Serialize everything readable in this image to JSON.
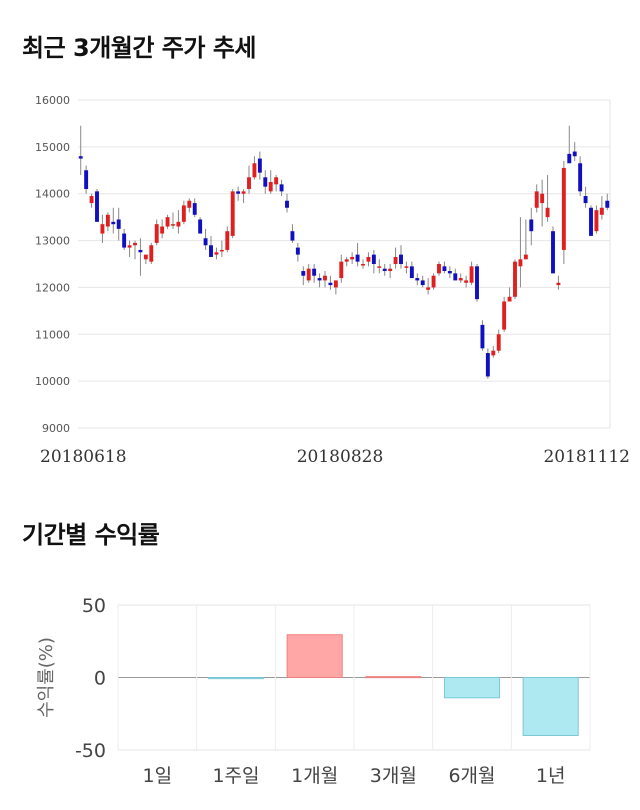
{
  "sections": {
    "price_title": "최근 3개월간 주가 추세",
    "returns_title": "기간별 수익률"
  },
  "chart_data": [
    {
      "type": "candlestick",
      "title": "최근 3개월간 주가 추세",
      "ylim": [
        9000,
        16000
      ],
      "yticks": [
        9000,
        10000,
        11000,
        12000,
        13000,
        14000,
        15000,
        16000
      ],
      "xtick_labels": [
        "20180618",
        "20180828",
        "20181112"
      ],
      "grid": true,
      "up_color": "#e02020",
      "down_color": "#1010c0",
      "series": [
        [
          14800,
          15450,
          14400,
          14750
        ],
        [
          14500,
          14600,
          14000,
          14100
        ],
        [
          13800,
          14000,
          13700,
          13950
        ],
        [
          14050,
          14100,
          13400,
          13400
        ],
        [
          13150,
          13550,
          12950,
          13350
        ],
        [
          13300,
          13600,
          13200,
          13550
        ],
        [
          13400,
          13700,
          13150,
          13350
        ],
        [
          13450,
          13700,
          13000,
          13250
        ],
        [
          13150,
          13250,
          12800,
          12850
        ],
        [
          12850,
          13000,
          12650,
          12900
        ],
        [
          12900,
          13000,
          12600,
          12950
        ],
        [
          12800,
          13050,
          12250,
          12750
        ],
        [
          12600,
          12700,
          12500,
          12700
        ],
        [
          12550,
          12950,
          12500,
          12900
        ],
        [
          12950,
          13450,
          12900,
          13350
        ],
        [
          13150,
          13450,
          13050,
          13300
        ],
        [
          13300,
          13550,
          13250,
          13500
        ],
        [
          13350,
          13600,
          13250,
          13350
        ],
        [
          13300,
          13650,
          13150,
          13400
        ],
        [
          13400,
          13850,
          13350,
          13750
        ],
        [
          13700,
          13900,
          13600,
          13850
        ],
        [
          13800,
          13900,
          13500,
          13550
        ],
        [
          13450,
          13500,
          13150,
          13150
        ],
        [
          13050,
          13250,
          12800,
          12900
        ],
        [
          12900,
          13100,
          12650,
          12650
        ],
        [
          12700,
          12850,
          12600,
          12750
        ],
        [
          12800,
          13000,
          12650,
          12800
        ],
        [
          12800,
          13300,
          12750,
          13200
        ],
        [
          13100,
          14100,
          13050,
          14050
        ],
        [
          14050,
          14150,
          13850,
          14000
        ],
        [
          14000,
          14100,
          13800,
          14050
        ],
        [
          14100,
          14600,
          14000,
          14350
        ],
        [
          14350,
          14800,
          14300,
          14650
        ],
        [
          14750,
          14900,
          14300,
          14450
        ],
        [
          14350,
          14500,
          14000,
          14150
        ],
        [
          14050,
          14500,
          14000,
          14250
        ],
        [
          14200,
          14400,
          14050,
          14350
        ],
        [
          14200,
          14300,
          13950,
          14050
        ],
        [
          13850,
          14000,
          13600,
          13700
        ],
        [
          13200,
          13350,
          12950,
          13000
        ],
        [
          12850,
          12950,
          12550,
          12700
        ],
        [
          12350,
          12450,
          12050,
          12250
        ],
        [
          12150,
          12500,
          12100,
          12400
        ],
        [
          12400,
          12500,
          12100,
          12250
        ],
        [
          12200,
          12300,
          12000,
          12150
        ],
        [
          12150,
          12350,
          12000,
          12250
        ],
        [
          12100,
          12250,
          11950,
          12050
        ],
        [
          12000,
          12150,
          11850,
          12150
        ],
        [
          12200,
          12700,
          12100,
          12550
        ],
        [
          12550,
          12650,
          12450,
          12600
        ],
        [
          12600,
          12750,
          12500,
          12650
        ],
        [
          12700,
          12950,
          12450,
          12550
        ],
        [
          12500,
          12600,
          12400,
          12500
        ],
        [
          12550,
          12750,
          12450,
          12650
        ],
        [
          12700,
          12800,
          12300,
          12500
        ],
        [
          12450,
          12600,
          12300,
          12450
        ],
        [
          12400,
          12500,
          12250,
          12350
        ],
        [
          12350,
          12500,
          12200,
          12400
        ],
        [
          12500,
          12850,
          12400,
          12650
        ],
        [
          12700,
          12900,
          12400,
          12500
        ],
        [
          12450,
          12550,
          12300,
          12450
        ],
        [
          12450,
          12550,
          12200,
          12200
        ],
        [
          12200,
          12300,
          12050,
          12150
        ],
        [
          12150,
          12250,
          12000,
          12050
        ],
        [
          11950,
          12200,
          11850,
          12000
        ],
        [
          12000,
          12300,
          11950,
          12250
        ],
        [
          12300,
          12550,
          12250,
          12500
        ],
        [
          12450,
          12550,
          12300,
          12350
        ],
        [
          12350,
          12450,
          12200,
          12300
        ],
        [
          12300,
          12400,
          12150,
          12150
        ],
        [
          12150,
          12300,
          12100,
          12200
        ],
        [
          12100,
          12250,
          12000,
          12150
        ],
        [
          12100,
          12550,
          12050,
          12450
        ],
        [
          12450,
          12500,
          11700,
          11750
        ],
        [
          11200,
          11300,
          10650,
          10700
        ],
        [
          10600,
          10700,
          10050,
          10100
        ],
        [
          10550,
          10750,
          10500,
          10650
        ],
        [
          10650,
          11100,
          10600,
          11000
        ],
        [
          11100,
          11800,
          11050,
          11700
        ],
        [
          11700,
          12000,
          11700,
          11800
        ],
        [
          11800,
          12600,
          11750,
          12550
        ],
        [
          12450,
          13500,
          12000,
          12600
        ],
        [
          12600,
          13450,
          12600,
          12700
        ],
        [
          13450,
          13700,
          12900,
          13200
        ],
        [
          13700,
          14200,
          13600,
          14050
        ],
        [
          13800,
          14300,
          13300,
          14000
        ],
        [
          13500,
          14400,
          13400,
          13700
        ],
        [
          13200,
          13300,
          12300,
          12300
        ],
        [
          12050,
          12250,
          11950,
          12100
        ],
        [
          12800,
          14700,
          12500,
          14550
        ],
        [
          14850,
          15450,
          14700,
          14650
        ],
        [
          14900,
          15100,
          14700,
          14800
        ],
        [
          14650,
          14800,
          13950,
          14050
        ],
        [
          13950,
          14150,
          13700,
          13800
        ],
        [
          13700,
          13750,
          13100,
          13100
        ],
        [
          13200,
          13750,
          13150,
          13650
        ],
        [
          13550,
          13950,
          13450,
          13700
        ],
        [
          13850,
          14000,
          13650,
          13700
        ]
      ]
    },
    {
      "type": "bar",
      "title": "기간별 수익률",
      "ylabel": "수익률(%)",
      "categories": [
        "1일",
        "1주일",
        "1개월",
        "3개월",
        "6개월",
        "1년"
      ],
      "values": [
        0,
        -0.8,
        29.5,
        0.6,
        -14,
        -40
      ],
      "ylim": [
        -50,
        50
      ],
      "yticks": [
        -50,
        0,
        50
      ],
      "grid": true,
      "positive_color": "#ffa6a6",
      "negative_color": "#aee9f2"
    }
  ]
}
